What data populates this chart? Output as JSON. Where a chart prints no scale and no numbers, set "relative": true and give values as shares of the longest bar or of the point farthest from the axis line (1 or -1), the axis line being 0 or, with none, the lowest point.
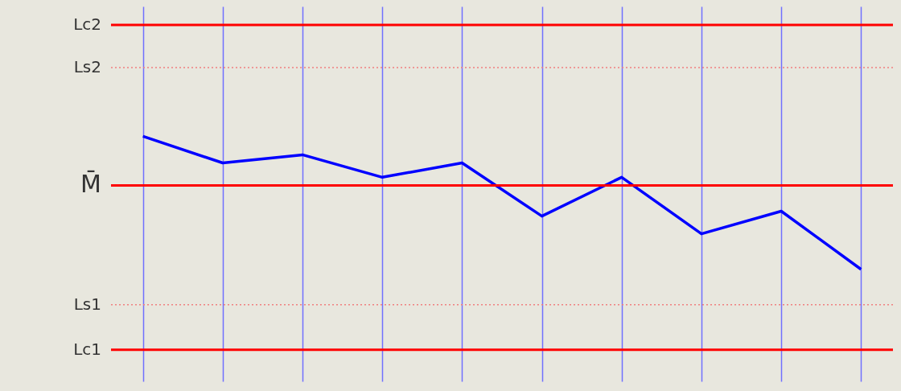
{
  "chart_data": {
    "type": "line",
    "relative": true,
    "grid": "x",
    "marker": "none",
    "line_style": "solid",
    "categories": [
      null,
      null,
      null,
      null,
      null,
      null,
      null,
      null,
      null,
      null
    ],
    "series": [
      {
        "color": "#0000ff",
        "values": [
          1.0,
          0.875,
          0.913,
          0.808,
          0.875,
          0.626,
          0.808,
          0.543,
          0.649,
          0.377
        ]
      }
    ],
    "ref_lines": [
      {
        "axis": "y",
        "value": 1.521,
        "label": "Lc2",
        "color": "#ff0000",
        "line_style": "solid"
      },
      {
        "axis": "y",
        "value": 1.321,
        "label": "Ls2",
        "color": "#f08080",
        "line_style": "dotted"
      },
      {
        "axis": "y",
        "value": 0.77,
        "label": "M̄",
        "color": "#ff0000",
        "line_style": "solid"
      },
      {
        "axis": "y",
        "value": 0.211,
        "label": "Ls1",
        "color": "#f08080",
        "line_style": "dotted"
      },
      {
        "axis": "y",
        "value": 0.0,
        "label": "Lc1",
        "color": "#ff0000",
        "line_style": "solid"
      }
    ]
  }
}
